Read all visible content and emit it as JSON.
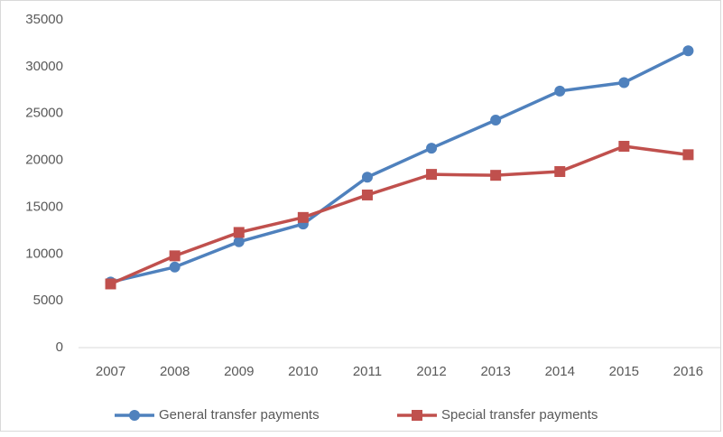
{
  "chart_data": {
    "type": "line",
    "categories": [
      "2007",
      "2008",
      "2009",
      "2010",
      "2011",
      "2012",
      "2013",
      "2014",
      "2015",
      "2016"
    ],
    "series": [
      {
        "name": "General transfer payments",
        "color": "#4f81bd",
        "marker": "circle",
        "values": [
          7000,
          8600,
          11300,
          13200,
          18200,
          21300,
          24300,
          27400,
          28300,
          31700
        ]
      },
      {
        "name": "Special transfer payments",
        "color": "#c0504d",
        "marker": "square",
        "values": [
          6800,
          9800,
          12300,
          13900,
          16300,
          18500,
          18400,
          18800,
          21500,
          20600
        ]
      }
    ],
    "ylim": [
      0,
      35000
    ],
    "yticks": [
      0,
      5000,
      10000,
      15000,
      20000,
      25000,
      30000,
      35000
    ],
    "grid": false,
    "legend": "bottom"
  }
}
